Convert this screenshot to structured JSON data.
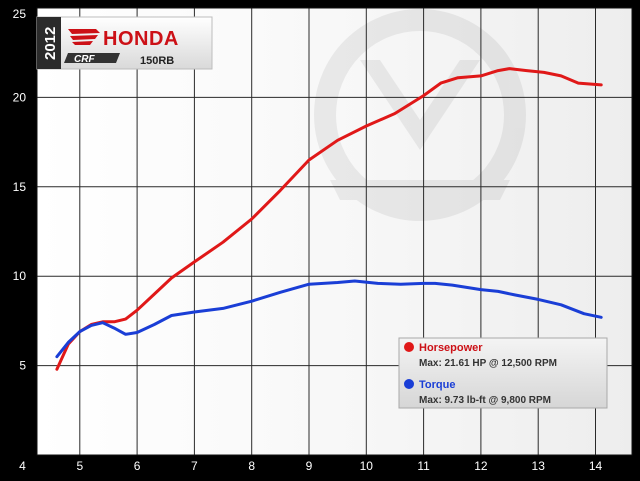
{
  "brand": {
    "year": "2012",
    "make": "HONDA",
    "model_script": "CRF",
    "model_number": "150RB",
    "accent_red": "#cc1016"
  },
  "legend": {
    "hp_title": "Horsepower",
    "hp_detail": "Max: 21.61 HP @ 12,500 RPM",
    "tq_title": "Torque",
    "tq_detail": "Max: 9.73 lb-ft @ 9,800 RPM",
    "placement": "bottom-right"
  },
  "chart_data": {
    "type": "line",
    "title": "",
    "xlabel": "",
    "ylabel": "",
    "xlim": [
      4,
      14.5
    ],
    "ylim": [
      0,
      25
    ],
    "xticks": [
      4,
      5,
      6,
      7,
      8,
      9,
      10,
      11,
      12,
      13,
      14
    ],
    "yticks": [
      5,
      10,
      15,
      20,
      25
    ],
    "grid": true,
    "series": [
      {
        "name": "Horsepower",
        "color": "#e01818",
        "points": [
          [
            4.6,
            4.8
          ],
          [
            4.8,
            6.2
          ],
          [
            5.0,
            6.9
          ],
          [
            5.2,
            7.3
          ],
          [
            5.4,
            7.45
          ],
          [
            5.6,
            7.45
          ],
          [
            5.8,
            7.6
          ],
          [
            6.0,
            8.1
          ],
          [
            6.3,
            9.0
          ],
          [
            6.6,
            9.9
          ],
          [
            7.0,
            10.8
          ],
          [
            7.5,
            11.9
          ],
          [
            8.0,
            13.2
          ],
          [
            8.5,
            14.8
          ],
          [
            9.0,
            16.5
          ],
          [
            9.5,
            17.6
          ],
          [
            10.0,
            18.4
          ],
          [
            10.5,
            19.1
          ],
          [
            11.0,
            20.1
          ],
          [
            11.3,
            20.8
          ],
          [
            11.6,
            21.1
          ],
          [
            12.0,
            21.2
          ],
          [
            12.3,
            21.5
          ],
          [
            12.5,
            21.61
          ],
          [
            12.8,
            21.5
          ],
          [
            13.1,
            21.4
          ],
          [
            13.4,
            21.2
          ],
          [
            13.7,
            20.8
          ],
          [
            14.1,
            20.7
          ]
        ]
      },
      {
        "name": "Torque",
        "color": "#1a3ed6",
        "points": [
          [
            4.6,
            5.5
          ],
          [
            4.8,
            6.3
          ],
          [
            5.0,
            6.9
          ],
          [
            5.2,
            7.25
          ],
          [
            5.4,
            7.4
          ],
          [
            5.6,
            7.1
          ],
          [
            5.8,
            6.75
          ],
          [
            6.0,
            6.85
          ],
          [
            6.3,
            7.3
          ],
          [
            6.6,
            7.8
          ],
          [
            7.0,
            8.0
          ],
          [
            7.5,
            8.2
          ],
          [
            8.0,
            8.6
          ],
          [
            8.5,
            9.1
          ],
          [
            9.0,
            9.55
          ],
          [
            9.5,
            9.65
          ],
          [
            9.8,
            9.73
          ],
          [
            10.2,
            9.6
          ],
          [
            10.6,
            9.55
          ],
          [
            11.0,
            9.6
          ],
          [
            11.2,
            9.6
          ],
          [
            11.5,
            9.5
          ],
          [
            12.0,
            9.25
          ],
          [
            12.3,
            9.15
          ],
          [
            12.6,
            8.95
          ],
          [
            13.0,
            8.7
          ],
          [
            13.4,
            8.4
          ],
          [
            13.8,
            7.9
          ],
          [
            14.1,
            7.7
          ]
        ]
      }
    ]
  }
}
